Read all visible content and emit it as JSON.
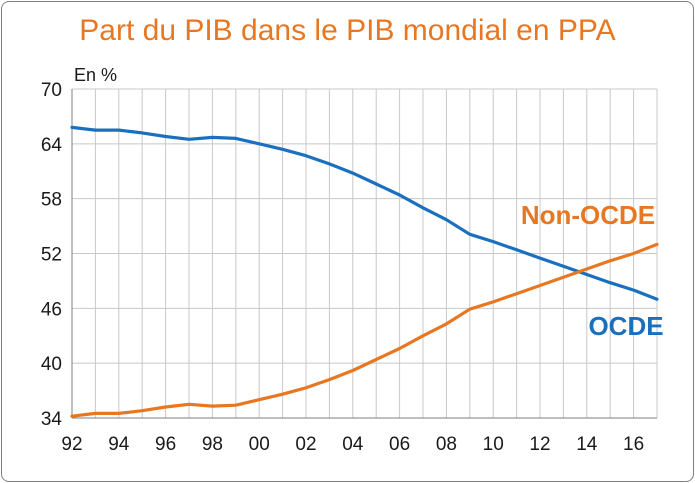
{
  "chart_data": {
    "type": "line",
    "title": "Part du PIB dans le PIB mondial en PPA",
    "ylabel": "En %",
    "xlim": [
      1992,
      2017
    ],
    "ylim": [
      34,
      70
    ],
    "yticks": [
      34,
      40,
      46,
      52,
      58,
      64,
      70
    ],
    "xticks": [
      1992,
      1994,
      1996,
      1998,
      2000,
      2002,
      2004,
      2006,
      2008,
      2010,
      2012,
      2014,
      2016
    ],
    "xtick_labels": [
      "92",
      "94",
      "96",
      "98",
      "00",
      "02",
      "04",
      "06",
      "08",
      "10",
      "12",
      "14",
      "16"
    ],
    "grid": true,
    "x": [
      1992,
      1993,
      1994,
      1995,
      1996,
      1997,
      1998,
      1999,
      2000,
      2001,
      2002,
      2003,
      2004,
      2005,
      2006,
      2007,
      2008,
      2009,
      2010,
      2011,
      2012,
      2013,
      2014,
      2015,
      2016,
      2017
    ],
    "series": [
      {
        "name": "OCDE",
        "color": "#1a6fbf",
        "values": [
          65.8,
          65.5,
          65.5,
          65.2,
          64.8,
          64.5,
          64.7,
          64.6,
          64.0,
          63.4,
          62.7,
          61.8,
          60.8,
          59.6,
          58.4,
          57.0,
          55.7,
          54.1,
          53.3,
          52.4,
          51.5,
          50.6,
          49.7,
          48.8,
          48.0,
          47.0
        ]
      },
      {
        "name": "Non-OCDE",
        "color": "#e87722",
        "values": [
          34.2,
          34.5,
          34.5,
          34.8,
          35.2,
          35.5,
          35.3,
          35.4,
          36.0,
          36.6,
          37.3,
          38.2,
          39.2,
          40.4,
          41.6,
          43.0,
          44.3,
          45.9,
          46.7,
          47.6,
          48.5,
          49.4,
          50.3,
          51.2,
          52.0,
          53.0
        ]
      }
    ]
  }
}
